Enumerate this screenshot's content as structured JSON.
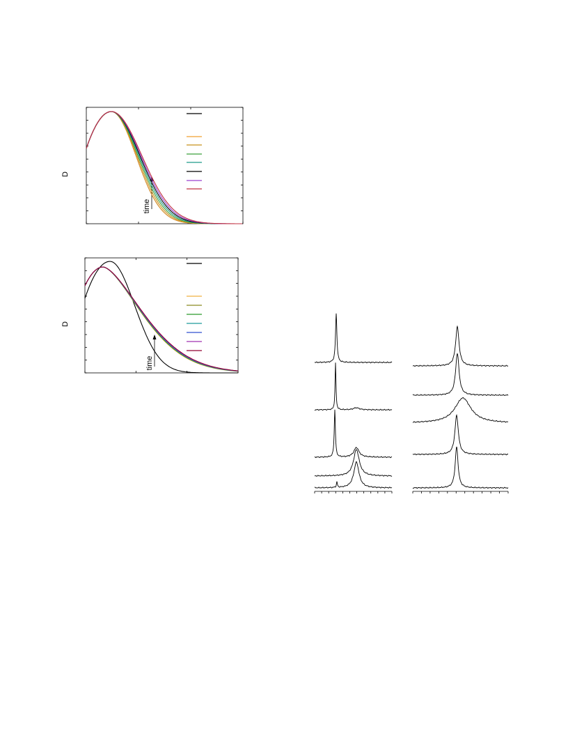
{
  "panels": [
    {
      "y_label": "D",
      "annotation": "time",
      "legend_colors": [
        "#000000",
        "#f0a030",
        "#c8901a",
        "#3aa03a",
        "#1f9a8a",
        "#000000",
        "#9a40d0",
        "#c03040"
      ]
    },
    {
      "y_label": "D",
      "annotation": "time",
      "legend_colors": [
        "#000000",
        "#f0b040",
        "#8a8a20",
        "#2a9a2a",
        "#1f9a9a",
        "#3050d0",
        "#a030b0",
        "#900030"
      ]
    }
  ]
}
